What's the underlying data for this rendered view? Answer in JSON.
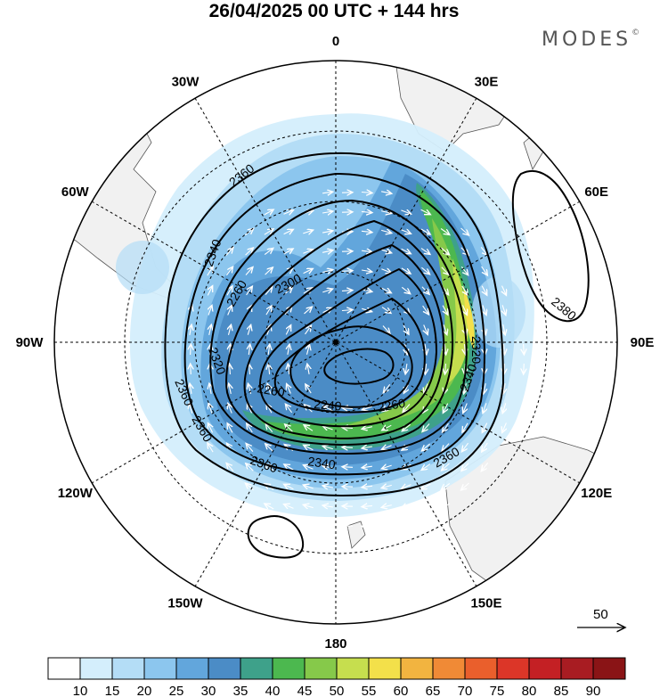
{
  "title": "26/04/2025  00 UTC  + 144 hrs",
  "brand": {
    "name": "MODES",
    "mark": "©"
  },
  "map": {
    "projection": "south polar stereographic",
    "longitude_labels": [
      {
        "text": "0",
        "lon": 0
      },
      {
        "text": "30E",
        "lon": 30
      },
      {
        "text": "60E",
        "lon": 60
      },
      {
        "text": "90E",
        "lon": 90
      },
      {
        "text": "120E",
        "lon": 120
      },
      {
        "text": "150E",
        "lon": 150
      },
      {
        "text": "180",
        "lon": 180
      },
      {
        "text": "150W",
        "lon": -150
      },
      {
        "text": "120W",
        "lon": -120
      },
      {
        "text": "90W",
        "lon": -90
      },
      {
        "text": "60W",
        "lon": -60
      },
      {
        "text": "30W",
        "lon": -30
      }
    ],
    "contour_labels": [
      "2360",
      "2340",
      "2300",
      "2360",
      "2380",
      "2320",
      "2320",
      "2260",
      "2360",
      "2240",
      "2260",
      "2340",
      "2360",
      "2340",
      "2260",
      "2360"
    ],
    "wind_reference": {
      "value": "50"
    }
  },
  "colorbar": {
    "ticks": [
      "10",
      "15",
      "20",
      "25",
      "30",
      "35",
      "40",
      "45",
      "50",
      "55",
      "60",
      "65",
      "70",
      "75",
      "80",
      "85",
      "90"
    ],
    "colors": [
      "#ffffff",
      "#d4eefc",
      "#b4ddf6",
      "#8cc6ee",
      "#62a6dc",
      "#4b8cc6",
      "#3ea18a",
      "#4cb84f",
      "#86c94a",
      "#c6de4e",
      "#f3e04a",
      "#f2b440",
      "#f08a36",
      "#ea5f2c",
      "#dc3628",
      "#c42024",
      "#a81c22",
      "#8a1416"
    ]
  }
}
